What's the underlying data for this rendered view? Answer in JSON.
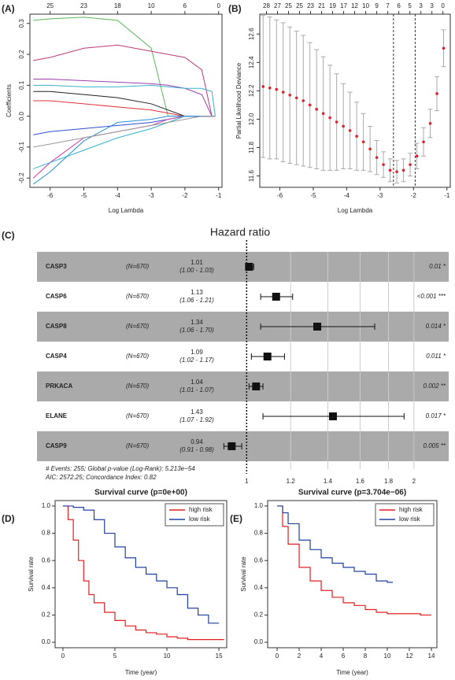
{
  "chart_data": [
    {
      "type": "line",
      "panel": "(A)",
      "xlabel": "Log Lambda",
      "ylabel": "Coefficients",
      "xlim": [
        -6.6,
        -0.9
      ],
      "xticks": [
        -6,
        -5,
        -4,
        -3,
        -2,
        -1
      ],
      "x2ticks": [
        {
          "value": -6,
          "label": "25"
        },
        {
          "value": -5,
          "label": "23"
        },
        {
          "value": -4,
          "label": "18"
        },
        {
          "value": -3,
          "label": "10"
        },
        {
          "value": -2,
          "label": "6"
        },
        {
          "value": -1,
          "label": "0"
        }
      ],
      "ylim": [
        -0.23,
        0.33
      ],
      "yticks": [
        -0.2,
        -0.1,
        {
          "value": 0,
          "label": "0.0"
        },
        0.1,
        0.2,
        0.3
      ],
      "x": [
        -6.5,
        -6,
        -5,
        -4,
        -3,
        -2.5,
        -2,
        -1.5,
        -1.2,
        -1.1
      ],
      "series": [
        {
          "color": "#5cb85c",
          "values": [
            0.31,
            0.315,
            0.32,
            0.31,
            0.22,
            0,
            0,
            0,
            0,
            0
          ]
        },
        {
          "color": "#c0397a",
          "values": [
            0.18,
            0.19,
            0.22,
            0.23,
            0.21,
            0.2,
            0.19,
            0.15,
            0,
            0
          ]
        },
        {
          "color": "#9b3fb0",
          "values": [
            0.12,
            0.12,
            0.115,
            0.11,
            0.105,
            0.1,
            0.09,
            0.07,
            0,
            0
          ]
        },
        {
          "color": "#3bb3c9",
          "values": [
            0.1,
            0.1,
            0.095,
            0.095,
            0.1,
            0.095,
            0.09,
            0.09,
            0.08,
            0
          ]
        },
        {
          "color": "#222222",
          "values": [
            0.08,
            0.08,
            0.07,
            0.06,
            0.04,
            0.02,
            0,
            0,
            0,
            0
          ]
        },
        {
          "color": "#e0303a",
          "values": [
            0.05,
            0.05,
            0.04,
            0.03,
            0.02,
            0.01,
            0,
            0,
            0,
            0
          ]
        },
        {
          "color": "#3050d0",
          "values": [
            -0.06,
            -0.05,
            -0.04,
            -0.03,
            -0.02,
            -0.01,
            0,
            0,
            0,
            0
          ]
        },
        {
          "color": "#d040a0",
          "values": [
            -0.2,
            -0.15,
            -0.07,
            -0.05,
            -0.03,
            -0.01,
            0,
            0,
            0,
            0
          ]
        },
        {
          "color": "#30b0d0",
          "values": [
            -0.17,
            -0.15,
            -0.11,
            -0.07,
            -0.04,
            -0.02,
            0,
            0,
            0,
            0
          ]
        },
        {
          "color": "#2a8fd8",
          "values": [
            -0.22,
            -0.18,
            -0.08,
            -0.02,
            -0.01,
            0,
            0,
            0,
            0,
            0
          ]
        },
        {
          "color": "#999999",
          "values": [
            -0.1,
            -0.09,
            -0.07,
            -0.05,
            -0.03,
            -0.02,
            -0.01,
            0,
            0,
            0
          ]
        }
      ]
    },
    {
      "type": "scatter",
      "panel": "(B)",
      "xlabel": "Log Lambda",
      "ylabel": "Partial Likelihood Deviance",
      "color": "#e0202a",
      "xlim": [
        -6.6,
        -0.9
      ],
      "xticks": [
        -6,
        -5,
        -4,
        -3,
        -2,
        -1
      ],
      "x2ticks": [
        {
          "value": -6.4,
          "label": "28"
        },
        {
          "value": -6.07,
          "label": "27"
        },
        {
          "value": -5.74,
          "label": "25"
        },
        {
          "value": -5.41,
          "label": "25"
        },
        {
          "value": -5.08,
          "label": "23"
        },
        {
          "value": -4.75,
          "label": "21"
        },
        {
          "value": -4.42,
          "label": "19"
        },
        {
          "value": -4.09,
          "label": "17"
        },
        {
          "value": -3.76,
          "label": "12"
        },
        {
          "value": -3.43,
          "label": "10"
        },
        {
          "value": -3.1,
          "label": "9"
        },
        {
          "value": -2.77,
          "label": "7"
        },
        {
          "value": -2.44,
          "label": "6"
        },
        {
          "value": -2.11,
          "label": "5"
        },
        {
          "value": -1.78,
          "label": "3"
        },
        {
          "value": -1.45,
          "label": "3"
        },
        {
          "value": -1.12,
          "label": "0"
        }
      ],
      "ylim": [
        11.52,
        12.74
      ],
      "yticks": [
        11.6,
        11.8,
        {
          "value": 12,
          "label": "12.0"
        },
        12.2,
        12.4,
        12.6
      ],
      "vlines": [
        -2.6,
        -1.95
      ],
      "x": [
        -6.5,
        -6.3,
        -6.1,
        -5.9,
        -5.7,
        -5.5,
        -5.3,
        -5.1,
        -4.9,
        -4.7,
        -4.5,
        -4.3,
        -4.1,
        -3.9,
        -3.7,
        -3.5,
        -3.3,
        -3.1,
        -2.9,
        -2.7,
        -2.5,
        -2.3,
        -2.1,
        -1.9,
        -1.7,
        -1.5,
        -1.3,
        -1.1
      ],
      "values": [
        12.23,
        12.22,
        12.21,
        12.19,
        12.17,
        12.15,
        12.13,
        12.1,
        12.07,
        12.04,
        12.01,
        11.98,
        11.95,
        11.92,
        11.88,
        11.84,
        11.79,
        11.73,
        11.68,
        11.64,
        11.63,
        11.64,
        11.68,
        11.74,
        11.84,
        11.97,
        12.18,
        12.5
      ],
      "errors": [
        0.5,
        0.5,
        0.49,
        0.49,
        0.48,
        0.47,
        0.46,
        0.44,
        0.42,
        0.4,
        0.37,
        0.34,
        0.3,
        0.27,
        0.24,
        0.2,
        0.16,
        0.12,
        0.09,
        0.08,
        0.08,
        0.08,
        0.08,
        0.09,
        0.1,
        0.1,
        0.12,
        0.13
      ]
    },
    {
      "type": "forest",
      "panel": "(C)",
      "title": "Hazard ratio",
      "log_scale": true,
      "ref": 1,
      "xlim": [
        0.9,
        2.31
      ],
      "xticks": [
        1,
        1.2,
        1.4,
        1.6,
        1.8,
        2
      ],
      "rows": [
        {
          "name": "CASP3",
          "n": "(N=670)",
          "hr": 1.01,
          "ci": "(1.00 - 1.03)",
          "lo": 1.0,
          "hi": 1.03,
          "p": "0.01 *"
        },
        {
          "name": "CASP6",
          "n": "(N=670)",
          "hr": 1.13,
          "ci": "(1.06 - 1.21)",
          "lo": 1.06,
          "hi": 1.21,
          "p": "<0.001 ***"
        },
        {
          "name": "CASP8",
          "n": "(N=670)",
          "hr": 1.34,
          "ci": "(1.06 - 1.70)",
          "lo": 1.06,
          "hi": 1.7,
          "p": "0.014 *"
        },
        {
          "name": "CASP4",
          "n": "(N=670)",
          "hr": 1.09,
          "ci": "(1.02 - 1.17)",
          "lo": 1.02,
          "hi": 1.17,
          "p": "0.011 *"
        },
        {
          "name": "PRKACA",
          "n": "(N=670)",
          "hr": 1.04,
          "ci": "(1.01 - 1.07)",
          "lo": 1.01,
          "hi": 1.07,
          "p": "0.002 **"
        },
        {
          "name": "ELANE",
          "n": "(N=670)",
          "hr": 1.43,
          "ci": "(1.07 - 1.92)",
          "lo": 1.07,
          "hi": 1.92,
          "p": "0.017 *"
        },
        {
          "name": "CASP9",
          "n": "(N=670)",
          "hr": 0.94,
          "ci": "(0.91 - 0.98)",
          "lo": 0.91,
          "hi": 0.98,
          "p": "0.005 **"
        }
      ],
      "notes": [
        "# Events: 255; Global p-value (Log-Rank): 5.213e−54",
        "AIC: 2572.25; Concordance Index: 0.82"
      ]
    },
    {
      "type": "step",
      "panel": "(D)",
      "title": "Survival curve (p=0e+00)",
      "xlabel": "Time (year)",
      "ylabel": "Survival rate",
      "legend": "top right",
      "xlim": [
        -0.75,
        15.75
      ],
      "xticks": [
        0,
        5,
        10,
        15
      ],
      "ylim": [
        -0.04,
        1.04
      ],
      "yticks": [
        {
          "value": 0,
          "label": "0.0"
        },
        0.2,
        0.4,
        0.6,
        0.8,
        {
          "value": 1,
          "label": "1.0"
        }
      ],
      "series": [
        {
          "name": "high risk",
          "color": "#e02020",
          "x": [
            0,
            0.5,
            1,
            1.5,
            2,
            2.5,
            3,
            4,
            5,
            6,
            7,
            8,
            9,
            10,
            11,
            12,
            15.5
          ],
          "values": [
            1,
            0.9,
            0.75,
            0.6,
            0.45,
            0.35,
            0.29,
            0.22,
            0.16,
            0.12,
            0.09,
            0.07,
            0.06,
            0.04,
            0.03,
            0.02,
            0.02
          ]
        },
        {
          "name": "low risk",
          "color": "#2040a0",
          "x": [
            0,
            1,
            2,
            3,
            4,
            5,
            6,
            7,
            8,
            9,
            10,
            11,
            12,
            13,
            14,
            15
          ],
          "values": [
            1,
            0.99,
            0.97,
            0.9,
            0.8,
            0.7,
            0.62,
            0.55,
            0.5,
            0.45,
            0.4,
            0.35,
            0.25,
            0.2,
            0.14,
            0.14
          ]
        }
      ]
    },
    {
      "type": "step",
      "panel": "(E)",
      "title": "Survival curve (p=3.704e−06)",
      "xlabel": "Time (year)",
      "ylabel": "Survival rate",
      "legend": "top right",
      "xlim": [
        -0.86,
        14.5
      ],
      "xticks": [
        0,
        2,
        4,
        6,
        8,
        10,
        12,
        14
      ],
      "ylim": [
        -0.04,
        1.04
      ],
      "yticks": [
        {
          "value": 0,
          "label": "0.0"
        },
        0.2,
        0.4,
        0.6,
        0.8,
        {
          "value": 1,
          "label": "1.0"
        }
      ],
      "series": [
        {
          "name": "high risk",
          "color": "#e02020",
          "x": [
            0,
            0.5,
            1,
            2,
            3,
            4,
            5,
            6,
            7,
            8,
            9,
            10,
            11,
            12,
            13,
            14
          ],
          "values": [
            1,
            0.85,
            0.72,
            0.55,
            0.45,
            0.38,
            0.33,
            0.29,
            0.27,
            0.24,
            0.22,
            0.21,
            0.21,
            0.21,
            0.2,
            0.2
          ]
        },
        {
          "name": "low risk",
          "color": "#2040a0",
          "x": [
            0,
            0.5,
            1,
            2,
            3,
            4,
            5,
            6,
            7,
            8,
            9,
            10,
            10.5
          ],
          "values": [
            1,
            0.95,
            0.87,
            0.75,
            0.68,
            0.62,
            0.58,
            0.55,
            0.52,
            0.5,
            0.45,
            0.44,
            0.44
          ]
        }
      ]
    }
  ]
}
